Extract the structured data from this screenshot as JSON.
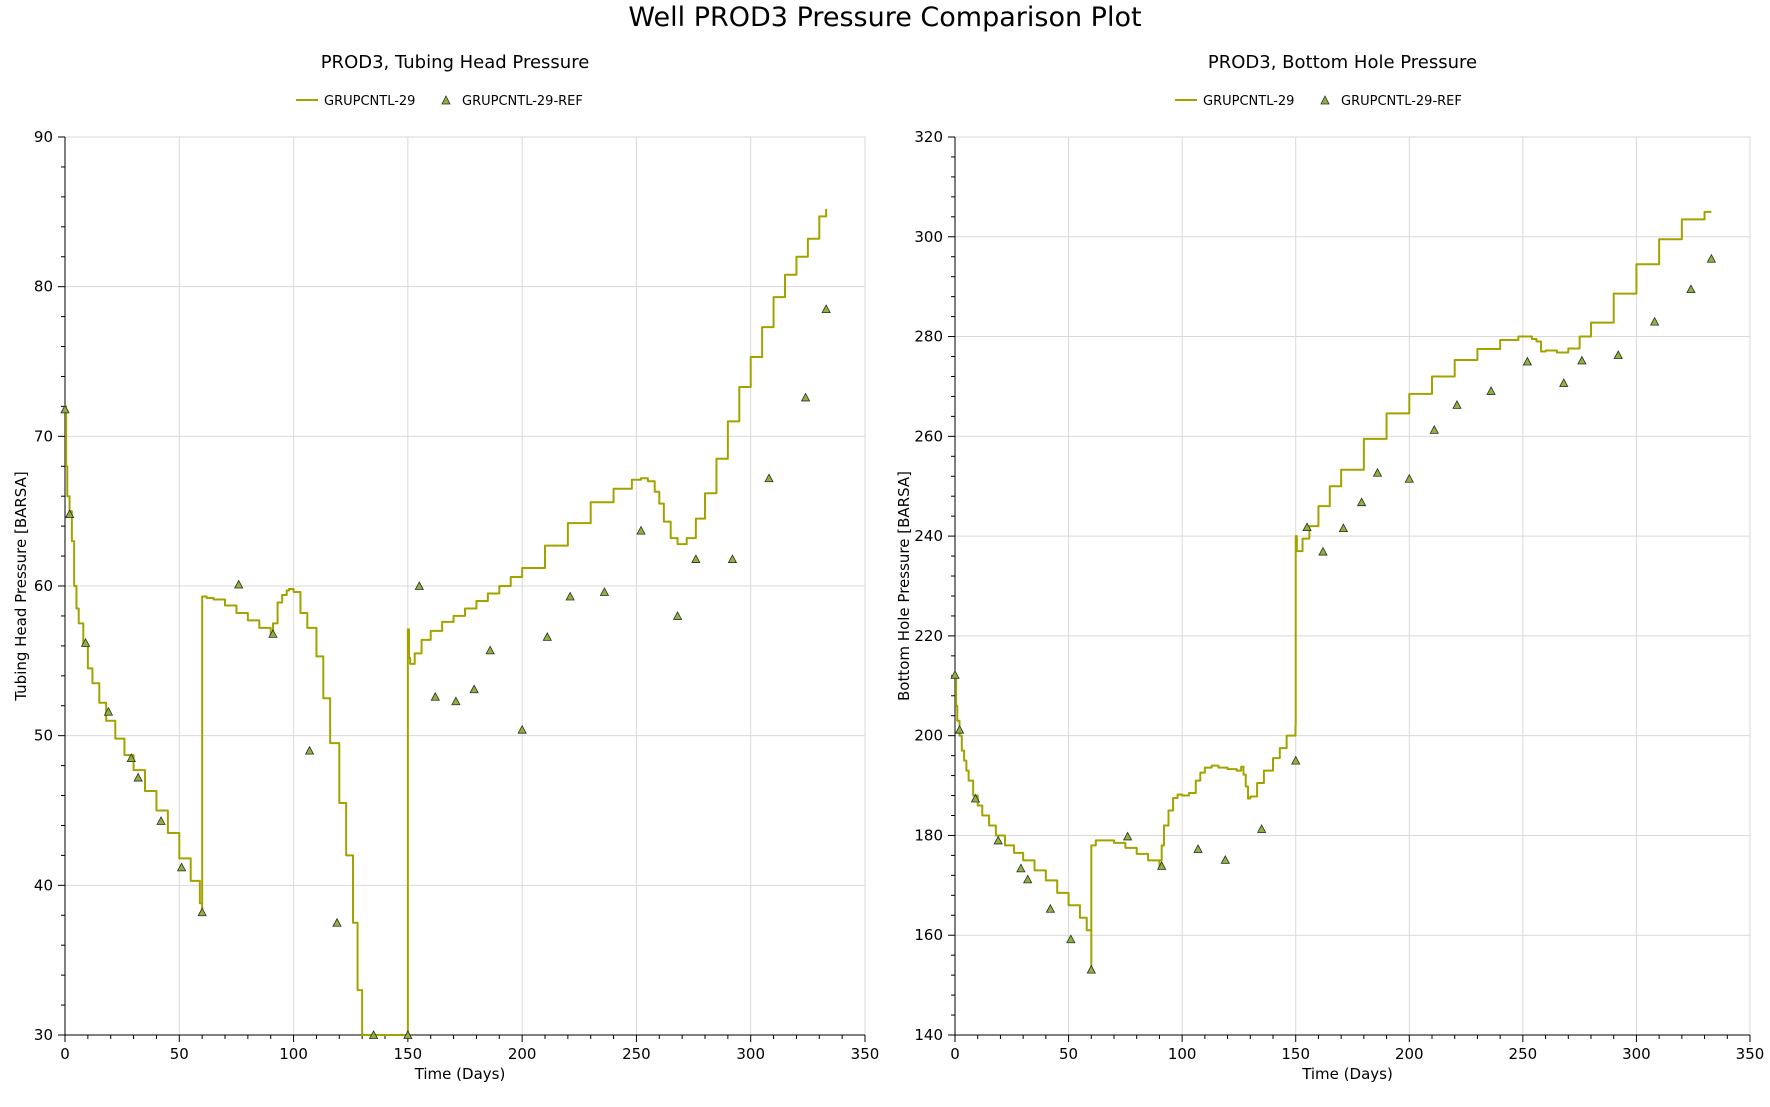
{
  "title": "Well PROD3 Pressure Comparison Plot",
  "colors": {
    "series": "#a3a300",
    "marker_fill": "#8db33a",
    "marker_stroke": "#2c2c2c",
    "grid": "#d9d9d9"
  },
  "chart_data": [
    {
      "type": "line",
      "title": "PROD3, Tubing Head Pressure",
      "xlabel": "Time (Days)",
      "ylabel": "Tubing Head Pressure [BARSA]",
      "xlim": [
        0,
        350
      ],
      "ylim": [
        30,
        90
      ],
      "xticks": [
        0,
        50,
        100,
        150,
        200,
        250,
        300,
        350
      ],
      "yticks": [
        30,
        40,
        50,
        60,
        70,
        80,
        90
      ],
      "grid": true,
      "legend_position": "top-center",
      "series": [
        {
          "name": "GRUPCNTL-29",
          "style": "step-line",
          "x": [
            0,
            0.5,
            1,
            2,
            3,
            4,
            5,
            6,
            8,
            10,
            12,
            15,
            18,
            22,
            26,
            30,
            35,
            40,
            45,
            50,
            55,
            59,
            60,
            60.01,
            62,
            65,
            70,
            75,
            80,
            85,
            90,
            91,
            93,
            95,
            97,
            98,
            100,
            103,
            106,
            110,
            113,
            116,
            120,
            123,
            126,
            128,
            130,
            140,
            149.9,
            150,
            150.5,
            151,
            153,
            156,
            160,
            165,
            170,
            175,
            180,
            185,
            190,
            195,
            200,
            210,
            220,
            230,
            240,
            248,
            252,
            255,
            258,
            260,
            262,
            265,
            268,
            272,
            276,
            280,
            285,
            290,
            295,
            300,
            305,
            310,
            315,
            320,
            325,
            330,
            333
          ],
          "values": [
            72,
            68,
            66,
            65,
            63,
            60,
            58.5,
            57.5,
            56,
            54.5,
            53.5,
            52.2,
            51,
            49.8,
            48.7,
            47.7,
            46.3,
            45,
            43.5,
            41.8,
            40.3,
            38.8,
            38,
            59.3,
            59.2,
            59.1,
            58.7,
            58.2,
            57.7,
            57.2,
            56.7,
            57.5,
            58.9,
            59.4,
            59.7,
            59.8,
            59.6,
            58.2,
            57.2,
            55.3,
            52.5,
            49.5,
            45.5,
            42,
            37.5,
            33,
            30,
            30,
            30,
            57.1,
            55.2,
            54.8,
            55.5,
            56.4,
            57,
            57.6,
            58,
            58.5,
            59,
            59.5,
            60,
            60.6,
            61.2,
            62.7,
            64.2,
            65.6,
            66.5,
            67.1,
            67.2,
            67.0,
            66.3,
            65.5,
            64.3,
            63.2,
            62.8,
            63.2,
            64.5,
            66.2,
            68.5,
            71,
            73.3,
            75.3,
            77.3,
            79.3,
            80.8,
            82,
            83.2,
            84.7,
            85.2
          ]
        },
        {
          "name": "GRUPCNTL-29-REF",
          "style": "markers",
          "x": [
            0,
            2,
            9,
            19,
            29,
            32,
            42,
            51,
            60,
            76,
            91,
            107,
            119,
            135,
            150,
            155,
            162,
            171,
            179,
            186,
            200,
            211,
            221,
            236,
            252,
            268,
            276,
            292,
            308,
            324,
            333
          ],
          "values": [
            71.8,
            64.8,
            56.2,
            51.6,
            48.5,
            47.2,
            44.3,
            41.2,
            38.2,
            60.1,
            56.8,
            49,
            37.5,
            30,
            30,
            60,
            52.6,
            52.3,
            53.1,
            55.7,
            50.4,
            56.6,
            59.3,
            59.6,
            63.7,
            58,
            61.8,
            61.8,
            67.2,
            72.6,
            78.5
          ]
        }
      ]
    },
    {
      "type": "line",
      "title": "PROD3, Bottom Hole Pressure",
      "xlabel": "Time (Days)",
      "ylabel": "Bottom Hole Pressure [BARSA]",
      "xlim": [
        0,
        350
      ],
      "ylim": [
        140,
        320
      ],
      "xticks": [
        0,
        50,
        100,
        150,
        200,
        250,
        300,
        350
      ],
      "yticks": [
        140,
        160,
        180,
        200,
        220,
        240,
        260,
        280,
        300,
        320
      ],
      "grid": true,
      "legend_position": "top-center",
      "series": [
        {
          "name": "GRUPCNTL-29",
          "style": "step-line",
          "x": [
            0,
            0.5,
            1,
            2,
            3,
            4,
            5,
            6,
            8,
            10,
            12,
            15,
            18,
            22,
            26,
            30,
            35,
            40,
            45,
            50,
            55,
            58,
            60,
            60.01,
            62,
            65,
            70,
            75,
            80,
            85,
            90,
            90.01,
            91,
            92,
            94,
            96,
            98,
            100,
            103,
            106,
            108,
            110,
            113,
            116,
            120,
            124,
            126,
            127,
            128,
            129,
            130,
            133,
            136,
            140,
            143,
            146,
            149.9,
            150,
            150.5,
            151,
            153,
            156,
            160,
            165,
            170,
            180,
            190,
            200,
            210,
            220,
            230,
            240,
            248,
            252,
            254,
            256,
            258,
            260,
            265,
            270,
            275,
            280,
            290,
            300,
            310,
            320,
            330,
            333
          ],
          "values": [
            212,
            206,
            203,
            200,
            197,
            195,
            193,
            191,
            188,
            186,
            184,
            182,
            180,
            178,
            176.5,
            175,
            173,
            171,
            168.5,
            166,
            163.5,
            161,
            153,
            178,
            179,
            179,
            178.5,
            177.5,
            176.3,
            175,
            173.8,
            175,
            178,
            182,
            185,
            187.5,
            188.2,
            188,
            188.5,
            191,
            192.6,
            193.6,
            194,
            193.6,
            193.3,
            193,
            193.8,
            192.2,
            189.8,
            187.4,
            187.8,
            190.5,
            193,
            195.5,
            197.5,
            200,
            202,
            240,
            237,
            237,
            239.5,
            242,
            246,
            250,
            253.3,
            259.5,
            264.6,
            268.5,
            272,
            275.3,
            277.5,
            279.3,
            280,
            280,
            279.5,
            279,
            277,
            277.2,
            276.8,
            277.6,
            280,
            282.8,
            288.6,
            294.5,
            299.5,
            303.5,
            305,
            305
          ]
        },
        {
          "name": "GRUPCNTL-29-REF",
          "style": "markers",
          "x": [
            0,
            2,
            9,
            19,
            29,
            32,
            42,
            51,
            60,
            76,
            91,
            107,
            119,
            135,
            150,
            155,
            162,
            171,
            179,
            186,
            200,
            211,
            221,
            236,
            252,
            268,
            276,
            292,
            308,
            324,
            333
          ],
          "values": [
            212.2,
            201.2,
            187.4,
            179,
            173.4,
            171.2,
            165.3,
            159.2,
            153.1,
            179.8,
            173.9,
            177.3,
            175.1,
            181.3,
            195,
            241.8,
            236.9,
            241.6,
            246.8,
            252.7,
            251.5,
            261.3,
            266.3,
            269.1,
            275,
            270.7,
            275.2,
            276.3,
            283,
            289.5,
            295.6
          ]
        }
      ]
    }
  ]
}
